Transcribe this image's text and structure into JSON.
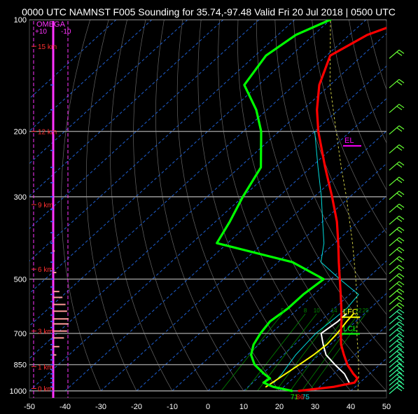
{
  "title": "0000 UTC NAMNST F005 Sounding for 35.74,-97.48 Valid  Fri 20 Jul 2018 | 0500 UTC",
  "colors": {
    "background": "#000000",
    "temperature": "#ff0000",
    "dewpoint": "#00ff00",
    "wetbulb": "#00dddd",
    "parcel": "#ffffff",
    "virtual_parcel": "#ffff00",
    "isobar": "#9a9a9a",
    "isotherm": "#1e5fd0",
    "dry_adiabat": "#666666",
    "moist_adiabat": "#cccc44",
    "mixing_ratio": "#008800",
    "omega_label": "#ff33ff",
    "height_label": "#ff3030",
    "lfc": "#ffff00",
    "lcl": "#00ff00",
    "el": "#ff00ff",
    "omega_bar": "#ff9999",
    "wind_barb": "#66ff33"
  },
  "chart_data": {
    "type": "line",
    "xlabel": "",
    "ylabel": "",
    "xlim": [
      -50,
      50
    ],
    "ylim": [
      1000,
      100
    ],
    "y_scale": "log",
    "x_ticks": [
      "-50",
      "-40",
      "-30",
      "-20",
      "-10",
      "0",
      "10",
      "20",
      "30",
      "40",
      "50"
    ],
    "y_ticks": [
      "100",
      "200",
      "300",
      "500",
      "700",
      "850",
      "1000"
    ],
    "isotherm_values": [
      -140,
      -130,
      -120,
      -110,
      -100,
      -90,
      -80,
      -70,
      -60,
      -50,
      -40,
      -30,
      -20,
      -10,
      0,
      10,
      20,
      30,
      40
    ],
    "temperature": {
      "pressure": [
        1000,
        975,
        950,
        925,
        900,
        850,
        800,
        750,
        700,
        650,
        600,
        550,
        500,
        450,
        400,
        350,
        300,
        250,
        200,
        175,
        150,
        125,
        110,
        100
      ],
      "temp": [
        25.5,
        34,
        38.5,
        38,
        35.5,
        31,
        27,
        23,
        19.5,
        16,
        12,
        7.5,
        2.5,
        -3,
        -9,
        -16,
        -25,
        -36,
        -49,
        -56,
        -63,
        -69,
        -65,
        -58
      ]
    },
    "dewpoint": {
      "pressure": [
        1000,
        975,
        950,
        925,
        900,
        850,
        800,
        750,
        700,
        650,
        600,
        550,
        500,
        450,
        400,
        350,
        300,
        250,
        200,
        175,
        150,
        125,
        110,
        100
      ],
      "dewp": [
        23.5,
        17,
        13,
        13.5,
        10.5,
        5,
        1,
        -1.5,
        -3,
        -4,
        -3,
        -3,
        -2,
        -16,
        -43,
        -46,
        -50,
        -54,
        -65,
        -73,
        -84,
        -87,
        -85,
        -80
      ]
    },
    "wetbulb": {
      "pressure": [
        950,
        900,
        850,
        800,
        750,
        700,
        650,
        600,
        550,
        500,
        450,
        400,
        350,
        300,
        250,
        200
      ],
      "temp": [
        16,
        15.5,
        14.5,
        13.5,
        13,
        12.5,
        13,
        13.5,
        12.5,
        2.5,
        -8,
        -13,
        -20,
        -28,
        -38,
        -50
      ]
    },
    "parcel": {
      "pressure": [
        950,
        900,
        850,
        800,
        750,
        700,
        650,
        620
      ],
      "temp": [
        37,
        33,
        27.5,
        22,
        18,
        14,
        15,
        15
      ]
    },
    "virtual_parcel": {
      "pressure": [
        975,
        950,
        900,
        850,
        800,
        750,
        700,
        650,
        620
      ],
      "temp": [
        15,
        15.5,
        16.5,
        17.5,
        18.5,
        19,
        18.5,
        17.5,
        17
      ]
    },
    "height_labels": [
      {
        "text": "15 km",
        "p": 118
      },
      {
        "text": "12 km",
        "p": 200
      },
      {
        "text": "9 km",
        "p": 315
      },
      {
        "text": "6 km",
        "p": 470
      },
      {
        "text": "3 km",
        "p": 690
      },
      {
        "text": "1 km",
        "p": 860
      },
      {
        "text": "0 km",
        "p": 985
      }
    ],
    "omega_header": "OMEGA",
    "omega_ticks": [
      "+10",
      "-10"
    ],
    "omega_levels": [
      {
        "p": 540,
        "v": 4
      },
      {
        "p": 560,
        "v": 6
      },
      {
        "p": 585,
        "v": 8
      },
      {
        "p": 610,
        "v": 9
      },
      {
        "p": 640,
        "v": 10
      },
      {
        "p": 660,
        "v": 10
      },
      {
        "p": 690,
        "v": 9
      },
      {
        "p": 720,
        "v": 7
      },
      {
        "p": 760,
        "v": 4
      },
      {
        "p": 800,
        "v": 2
      },
      {
        "p": 480,
        "v": 2
      },
      {
        "p": 420,
        "v": 1
      }
    ],
    "mixing_ratio_labels": [
      "5",
      "8",
      "10",
      "14",
      "18",
      "22",
      "25"
    ],
    "annotations": [
      {
        "text": "LFC",
        "p": 622
      },
      {
        "text": "LCL",
        "p": 690
      },
      {
        "text": "EL",
        "p": 215
      }
    ],
    "surface_labels": {
      "dewpoint": "71",
      "wetbulb": "75",
      "temperature": "86"
    }
  }
}
